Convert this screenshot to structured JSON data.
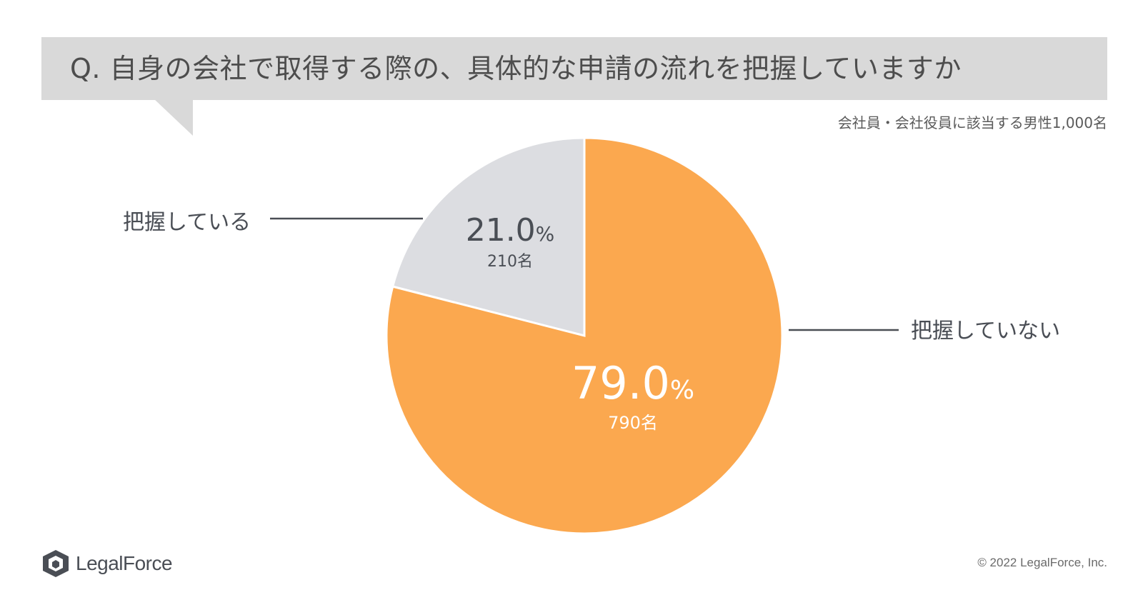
{
  "question": "Q. 自身の会社で取得する際の、具体的な申請の流れを把握していますか",
  "sample_note": "会社員・会社役員に該当する男性1,000名",
  "copyright": "© 2022 LegalForce, Inc.",
  "logo": {
    "text": "LegalForce",
    "icon": "legalforce-cube-logo-icon"
  },
  "colors": {
    "orange": "#fba84f",
    "gray": "#dcdde1",
    "text": "#4a4e55"
  },
  "chart_data": {
    "type": "pie",
    "title": "Q. 自身の会社で取得する際の、具体的な申請の流れを把握していますか",
    "categories": [
      "把握している",
      "把握していない"
    ],
    "values": [
      21.0,
      79.0
    ],
    "counts": [
      210,
      790
    ],
    "value_labels": [
      "21.0",
      "79.0"
    ],
    "percent_suffix": "%",
    "count_labels": [
      "210名",
      "790名"
    ],
    "start_angle_deg": 0,
    "direction": "counterclockwise-from-top for first slice",
    "colors": [
      "#dcdde1",
      "#fba84f"
    ],
    "legend": "leader-lines"
  }
}
